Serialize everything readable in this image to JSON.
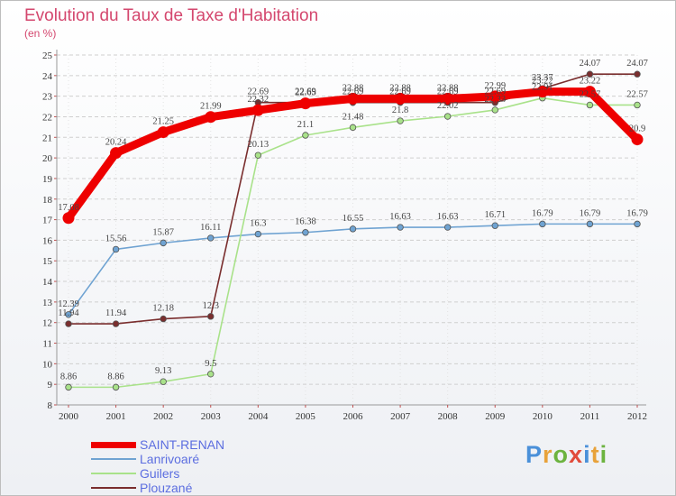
{
  "header": {
    "title": "Evolution du Taux de Taxe d'Habitation",
    "unit": "(en %)"
  },
  "brand": {
    "name": "Proxiti",
    "letter_colors": [
      "#4a90d9",
      "#e8a23a",
      "#6cb33f",
      "#e14b3b",
      "#4a90d9",
      "#e8a23a",
      "#6cb33f"
    ]
  },
  "chart_data": {
    "type": "line",
    "title": "Evolution du Taux de Taxe d'Habitation",
    "ylabel": "(en %)",
    "xlabel": "",
    "ylim": [
      8,
      25
    ],
    "yticks": [
      "8",
      "9",
      "10",
      "11",
      "12",
      "13",
      "14",
      "15",
      "16",
      "17",
      "18",
      "19",
      "20",
      "21",
      "22",
      "23",
      "24",
      "25"
    ],
    "categories": [
      "2000",
      "2001",
      "2002",
      "2003",
      "2004",
      "2005",
      "2006",
      "2007",
      "2008",
      "2009",
      "2010",
      "2011",
      "2012"
    ],
    "grid": "horizontal dashed",
    "legend_position": "bottom-left",
    "series": [
      {
        "name": "SAINT-RENAN",
        "color": "#ee0000",
        "values": [
          17.08,
          20.24,
          21.25,
          21.99,
          22.32,
          22.65,
          22.88,
          22.88,
          22.88,
          22.99,
          23.22,
          23.22,
          20.9
        ],
        "labels": [
          "17.08",
          "20.24",
          "21.25",
          "21.99",
          "22.32",
          "22.65",
          "22.88",
          "22.88",
          "22.88",
          "22.99",
          "23.22",
          "23.22",
          "20.9"
        ]
      },
      {
        "name": "Lanrivoaré",
        "color": "#6fa3d2",
        "values": [
          12.39,
          15.56,
          15.87,
          16.11,
          16.3,
          16.38,
          16.55,
          16.63,
          16.63,
          16.71,
          16.79,
          16.79,
          16.79
        ],
        "labels": [
          "12.39",
          "15.56",
          "15.87",
          "16.11",
          "16.3",
          "16.38",
          "16.55",
          "16.63",
          "16.63",
          "16.71",
          "16.79",
          "16.79",
          "16.79"
        ]
      },
      {
        "name": "Guilers",
        "color": "#a9e28a",
        "values": [
          8.86,
          8.86,
          9.13,
          9.5,
          20.13,
          21.1,
          21.48,
          21.8,
          22.02,
          22.33,
          22.91,
          22.57,
          22.57
        ],
        "labels": [
          "8.86",
          "8.86",
          "9.13",
          "9.5",
          "20.13",
          "21.1",
          "21.48",
          "21.8",
          "22.02",
          "22.33",
          "22.91",
          "22.57",
          "22.57"
        ]
      },
      {
        "name": "Plouzané",
        "color": "#7a2e2e",
        "values": [
          11.94,
          11.94,
          12.18,
          12.3,
          22.69,
          22.69,
          22.69,
          22.69,
          22.69,
          22.69,
          23.37,
          24.07,
          24.07
        ],
        "labels": [
          "11.94",
          "11.94",
          "12.18",
          "12.3",
          "22.69",
          "22.69",
          "22.69",
          "22.69",
          "22.69",
          "22.69",
          "23.37",
          "24.07",
          "24.07"
        ]
      }
    ]
  }
}
